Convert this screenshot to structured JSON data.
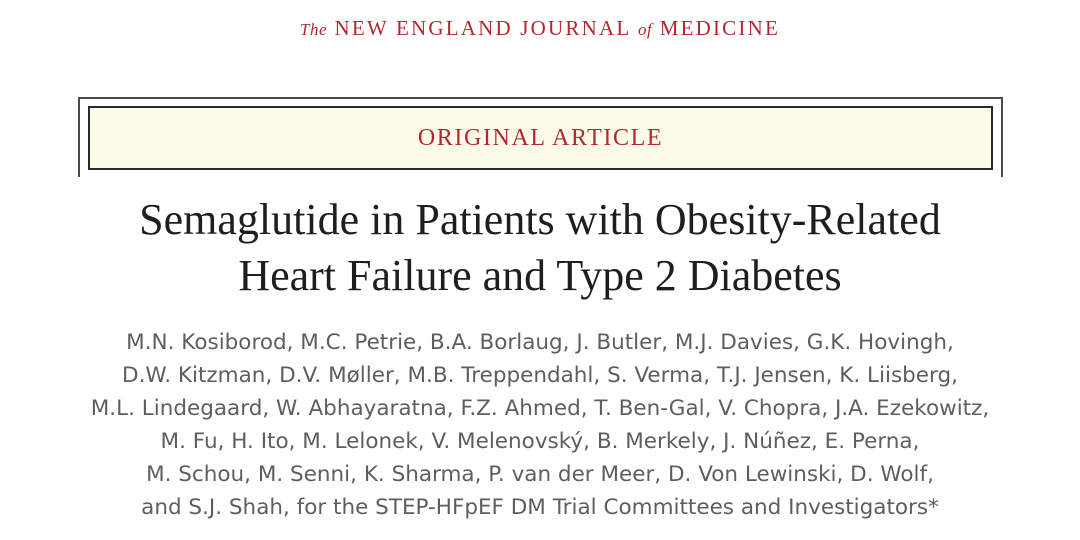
{
  "journal": {
    "the": "The",
    "name_part1": "NEW ENGLAND JOURNAL",
    "of": "of",
    "name_part2": "MEDICINE"
  },
  "article_type": "ORIGINAL ARTICLE",
  "title": {
    "line1": "Semaglutide in Patients with Obesity-Related",
    "line2": "Heart Failure and Type 2 Diabetes"
  },
  "authors": {
    "lines": [
      "M.N. Kosiborod, M.C. Petrie, B.A. Borlaug, J. Butler, M.J. Davies, G.K. Hovingh,",
      "D.W. Kitzman, D.V. Møller, M.B. Treppendahl, S. Verma, T.J. Jensen, K. Liisberg,",
      "M.L. Lindegaard, W. Abhayaratna, F.Z. Ahmed, T. Ben-Gal, V. Chopra, J.A. Ezekowitz,",
      "M. Fu, H. Ito, M. Lelonek, V. Melenovský, B. Merkely, J. Núñez, E. Perna,",
      "M. Schou, M. Senni, K. Sharma, P. van der Meer, D. Von Lewinski, D. Wolf,",
      "and S.J. Shah, for the STEP-HFpEF DM Trial Committees and Investigators*"
    ]
  },
  "colors": {
    "accent_red": "#b2282d",
    "box_background": "#fdfbea",
    "title_text": "#1e1e1e",
    "author_text": "#5e5e5e"
  }
}
